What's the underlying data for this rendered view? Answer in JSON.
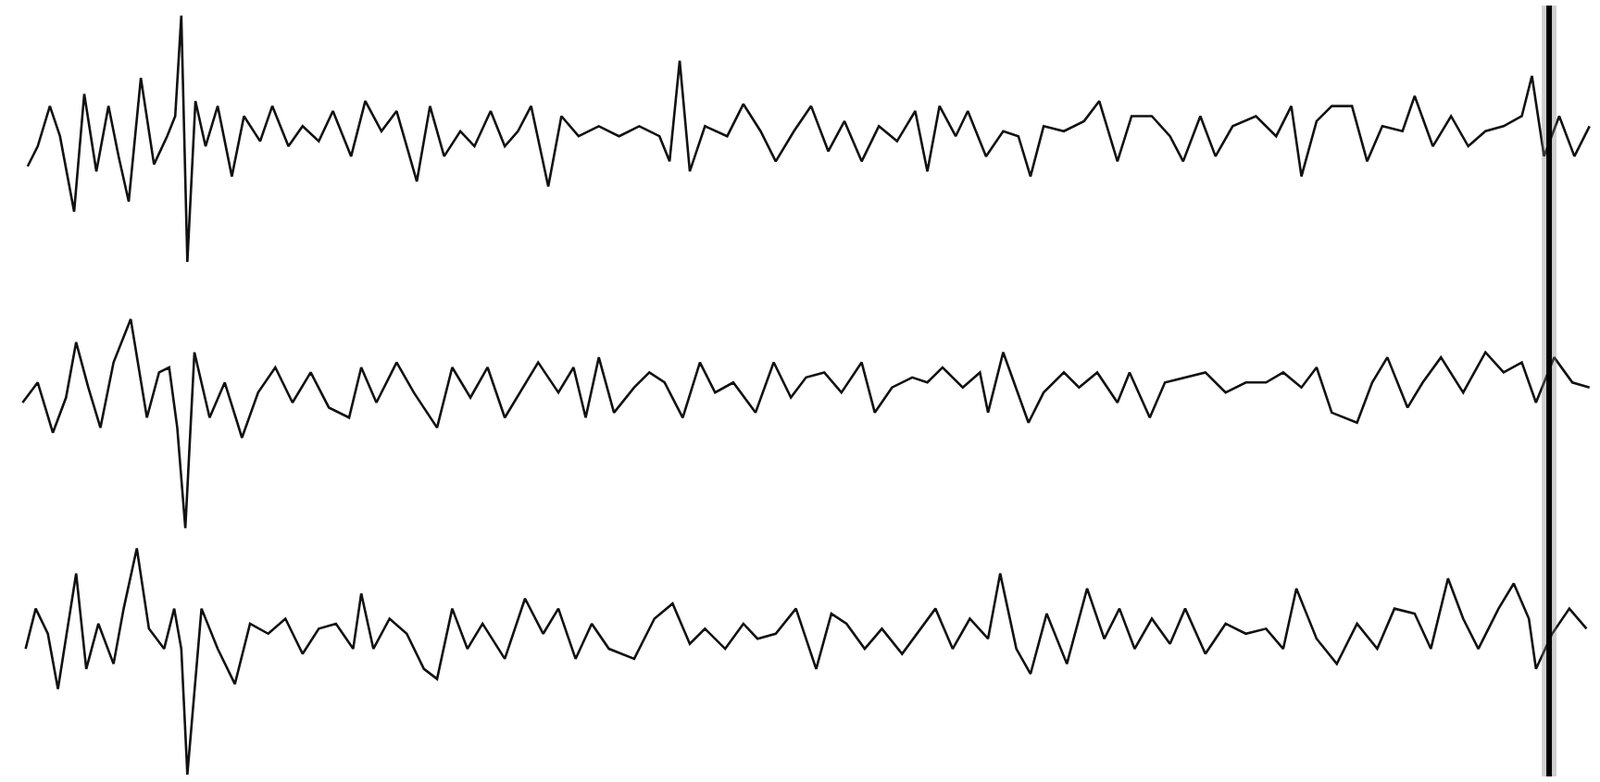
{
  "chart_data": {
    "type": "line",
    "xlim": [
      0,
      1568
    ],
    "ylim": [
      0,
      767
    ],
    "tick_labels": false,
    "grid": false,
    "series": [
      {
        "color": "#111111",
        "x": [
          20,
          30,
          42,
          52,
          66,
          76,
          88,
          100,
          110,
          120,
          132,
          145,
          158,
          166,
          172,
          178,
          186,
          196,
          208,
          222,
          234,
          250,
          262,
          278,
          292,
          308,
          322,
          340,
          354,
          370,
          385,
          405,
          418,
          432,
          448,
          462,
          478,
          492,
          505,
          518,
          535,
          548,
          565,
          585,
          605,
          625,
          645,
          655,
          665,
          675,
          690,
          712,
          728,
          745,
          760,
          778,
          795,
          812,
          828,
          845,
          862,
          880,
          898,
          910,
          922,
          938,
          950,
          968,
          985,
          1000,
          1012,
          1025,
          1045,
          1065,
          1080,
          1098,
          1112,
          1132,
          1150,
          1163,
          1180,
          1195,
          1212,
          1235,
          1255,
          1270,
          1280,
          1295,
          1310,
          1330,
          1345,
          1360,
          1380,
          1392,
          1410,
          1428,
          1445,
          1462,
          1480,
          1498,
          1508,
          1520,
          1535,
          1550,
          1565
        ],
        "values": [
          607,
          627,
          667,
          637,
          562,
          679,
          602,
          667,
          617,
          572,
          695,
          609,
          637,
          657,
          757,
          512,
          672,
          627,
          667,
          597,
          657,
          632,
          667,
          627,
          647,
          632,
          662,
          617,
          672,
          642,
          662,
          592,
          667,
          617,
          642,
          627,
          662,
          627,
          642,
          667,
          587,
          657,
          637,
          647,
          637,
          647,
          637,
          612,
          712,
          602,
          647,
          637,
          669,
          642,
          612,
          642,
          667,
          622,
          652,
          612,
          647,
          632,
          662,
          602,
          667,
          637,
          662,
          617,
          642,
          637,
          597,
          647,
          642,
          652,
          672,
          612,
          657,
          657,
          637,
          612,
          657,
          617,
          647,
          657,
          637,
          667,
          597,
          652,
          667,
          667,
          612,
          647,
          642,
          677,
          627,
          657,
          627,
          642,
          647,
          657,
          697,
          617,
          657,
          617,
          647
        ]
      },
      {
        "color": "#111111",
        "x": [
          15,
          30,
          45,
          58,
          68,
          80,
          92,
          105,
          122,
          138,
          150,
          160,
          168,
          176,
          185,
          200,
          215,
          232,
          248,
          265,
          282,
          300,
          318,
          338,
          350,
          365,
          385,
          402,
          425,
          440,
          458,
          475,
          492,
          510,
          525,
          545,
          560,
          572,
          585,
          600,
          620,
          635,
          650,
          668,
          685,
          700,
          718,
          740,
          758,
          775,
          790,
          808,
          825,
          845,
          858,
          875,
          895,
          910,
          925,
          945,
          962,
          970,
          985,
          1010,
          1025,
          1045,
          1060,
          1078,
          1098,
          1110,
          1130,
          1145,
          1165,
          1185,
          1205,
          1225,
          1245,
          1262,
          1280,
          1295,
          1310,
          1335,
          1350,
          1365,
          1385,
          1400,
          1418,
          1440,
          1462,
          1480,
          1498,
          1512,
          1530,
          1548,
          1565
        ],
        "values": [
          372,
          392,
          342,
          377,
          432,
          387,
          347,
          412,
          455,
          357,
          402,
          407,
          347,
          247,
          422,
          357,
          392,
          337,
          382,
          407,
          372,
          402,
          367,
          357,
          407,
          372,
          412,
          382,
          347,
          407,
          377,
          407,
          357,
          387,
          412,
          382,
          407,
          357,
          417,
          362,
          387,
          402,
          392,
          357,
          412,
          382,
          392,
          362,
          412,
          377,
          397,
          402,
          382,
          412,
          362,
          387,
          397,
          392,
          407,
          387,
          402,
          362,
          422,
          352,
          382,
          402,
          387,
          402,
          372,
          402,
          357,
          392,
          397,
          402,
          382,
          392,
          392,
          402,
          387,
          407,
          362,
          352,
          392,
          417,
          367,
          392,
          417,
          382,
          422,
          402,
          412,
          372,
          417,
          392,
          387
        ]
      },
      {
        "color": "#111111",
        "x": [
          18,
          28,
          40,
          50,
          68,
          78,
          90,
          105,
          115,
          128,
          140,
          155,
          165,
          172,
          178,
          192,
          208,
          225,
          240,
          258,
          275,
          292,
          308,
          325,
          342,
          350,
          362,
          378,
          395,
          412,
          425,
          440,
          455,
          470,
          492,
          512,
          530,
          545,
          562,
          578,
          595,
          620,
          640,
          658,
          675,
          690,
          710,
          728,
          742,
          760,
          780,
          800,
          815,
          830,
          848,
          865,
          885,
          900,
          918,
          935,
          952,
          970,
          982,
          998,
          1012,
          1028,
          1048,
          1068,
          1085,
          1100,
          1115,
          1132,
          1150,
          1165,
          1185,
          1205,
          1225,
          1245,
          1262,
          1275,
          1295,
          1315,
          1335,
          1355,
          1372,
          1392,
          1408,
          1425,
          1440,
          1455,
          1475,
          1490,
          1505,
          1512,
          1528,
          1545,
          1562
        ],
        "values": [
          127,
          167,
          142,
          87,
          202,
          107,
          152,
          112,
          167,
          227,
          147,
          127,
          167,
          127,
          2,
          167,
          127,
          92,
          152,
          142,
          157,
          122,
          147,
          152,
          127,
          182,
          127,
          157,
          142,
          107,
          97,
          167,
          127,
          152,
          117,
          177,
          142,
          167,
          117,
          152,
          127,
          117,
          157,
          172,
          132,
          147,
          127,
          152,
          137,
          142,
          167,
          107,
          162,
          152,
          127,
          147,
          122,
          142,
          167,
          127,
          157,
          137,
          202,
          127,
          102,
          162,
          112,
          187,
          137,
          167,
          127,
          157,
          132,
          167,
          122,
          152,
          142,
          147,
          127,
          187,
          137,
          112,
          152,
          127,
          167,
          162,
          127,
          197,
          157,
          127,
          167,
          192,
          157,
          107,
          142,
          167,
          147
        ]
      },
      {
        "color": "#000000",
        "x": [
          1525,
          1525
        ],
        "values": [
          0,
          767
        ]
      }
    ]
  }
}
